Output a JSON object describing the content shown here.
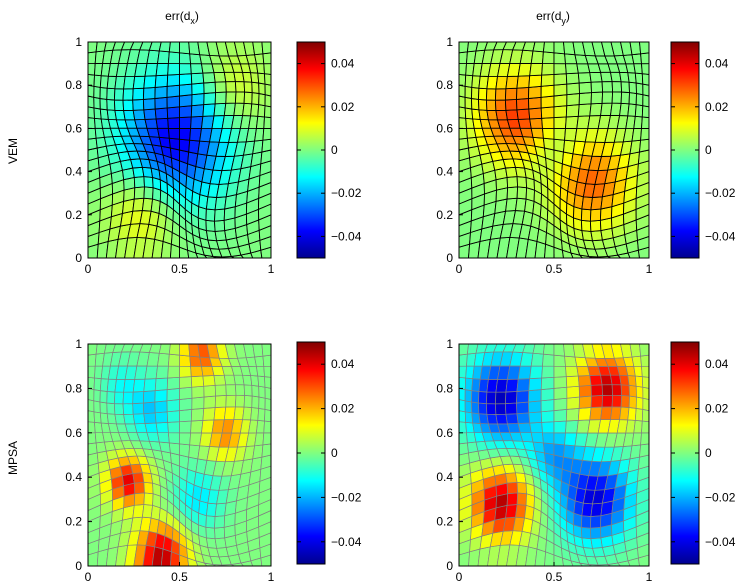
{
  "figure": {
    "column_titles": [
      "err(d",
      "err(d"
    ],
    "column_subscripts": [
      "x",
      "y"
    ],
    "row_labels": [
      "VEM",
      "MPSA"
    ]
  },
  "colors": {
    "colormap": [
      "#00008f",
      "#0000ff",
      "#0080ff",
      "#00ffff",
      "#80ff80",
      "#ffff00",
      "#ff8000",
      "#ff0000",
      "#800000"
    ],
    "vem_grid_line": "#000000",
    "mpsa_grid_line": "#808080"
  },
  "chart_data": [
    {
      "type": "heatmap",
      "method": "VEM",
      "quantity": "err(d_x)",
      "title": "err(d_x)",
      "xlim": [
        0,
        1
      ],
      "ylim": [
        0,
        1
      ],
      "xticks": [
        "0",
        "0.5",
        "1"
      ],
      "yticks": [
        "0",
        "0.2",
        "0.4",
        "0.6",
        "0.8",
        "1"
      ],
      "clim": [
        -0.05,
        0.05
      ],
      "colorbar_ticks": [
        "0.04",
        "0.02",
        "0",
        "−0.02",
        "−0.04"
      ],
      "colorbar_tick_values": [
        0.04,
        0.02,
        0,
        -0.02,
        -0.04
      ],
      "grid": "distorted 20x20 mesh, black lines",
      "field": {
        "kind": "smooth",
        "note": "negative blob centered near (0.55,0.55), mild positive lobes near (0.3,0.2) and (0.8,0.75)",
        "lobes": [
          {
            "x": 0.48,
            "y": 0.55,
            "v": -0.04,
            "w": 0.2
          },
          {
            "x": 0.3,
            "y": 0.22,
            "v": 0.015,
            "w": 0.14
          },
          {
            "x": 0.78,
            "y": 0.78,
            "v": 0.012,
            "w": 0.14
          }
        ]
      }
    },
    {
      "type": "heatmap",
      "method": "VEM",
      "quantity": "err(d_y)",
      "title": "err(d_y)",
      "xlim": [
        0,
        1
      ],
      "ylim": [
        0,
        1
      ],
      "xticks": [
        "0",
        "0.5",
        "1"
      ],
      "yticks": [
        "0",
        "0.2",
        "0.4",
        "0.6",
        "0.8",
        "1"
      ],
      "clim": [
        -0.05,
        0.05
      ],
      "colorbar_ticks": [
        "0.04",
        "0.02",
        "0",
        "−0.02",
        "−0.04"
      ],
      "colorbar_tick_values": [
        0.04,
        0.02,
        0,
        -0.02,
        -0.04
      ],
      "grid": "distorted 20x20 mesh, black lines",
      "field": {
        "kind": "smooth",
        "note": "positive lobes near (0.3,0.65) and (0.7,0.35)",
        "lobes": [
          {
            "x": 0.3,
            "y": 0.65,
            "v": 0.032,
            "w": 0.15
          },
          {
            "x": 0.7,
            "y": 0.35,
            "v": 0.028,
            "w": 0.15
          },
          {
            "x": 0.5,
            "y": 0.5,
            "v": -0.008,
            "w": 0.1
          }
        ]
      }
    },
    {
      "type": "heatmap",
      "method": "MPSA",
      "quantity": "err(d_x)",
      "xlim": [
        0,
        1
      ],
      "ylim": [
        0,
        1
      ],
      "xticks": [
        "0",
        "0.5",
        "1"
      ],
      "yticks": [
        "0",
        "0.2",
        "0.4",
        "0.6",
        "0.8",
        "1"
      ],
      "clim": [
        -0.05,
        0.05
      ],
      "colorbar_ticks": [
        "0.04",
        "0.02",
        "0",
        "−0.02",
        "−0.04"
      ],
      "colorbar_tick_values": [
        0.04,
        0.02,
        0,
        -0.02,
        -0.04
      ],
      "grid": "distorted 20x20 mesh, gray lines, piecewise-constant cells",
      "field": {
        "kind": "cells",
        "note": "hot cells at bottom center and left middle, cool bands elsewhere",
        "lobes": [
          {
            "x": 0.4,
            "y": 0.05,
            "v": 0.045,
            "w": 0.1
          },
          {
            "x": 0.22,
            "y": 0.38,
            "v": 0.04,
            "w": 0.08
          },
          {
            "x": 0.75,
            "y": 0.6,
            "v": 0.025,
            "w": 0.08
          },
          {
            "x": 0.62,
            "y": 0.95,
            "v": 0.03,
            "w": 0.08
          },
          {
            "x": 0.35,
            "y": 0.7,
            "v": -0.018,
            "w": 0.1
          },
          {
            "x": 0.6,
            "y": 0.3,
            "v": -0.015,
            "w": 0.1
          },
          {
            "x": 0.18,
            "y": 0.82,
            "v": -0.01,
            "w": 0.08
          }
        ]
      }
    },
    {
      "type": "heatmap",
      "method": "MPSA",
      "quantity": "err(d_y)",
      "xlim": [
        0,
        1
      ],
      "ylim": [
        0,
        1
      ],
      "xticks": [
        "0",
        "0.5",
        "1"
      ],
      "yticks": [
        "0",
        "0.2",
        "0.4",
        "0.6",
        "0.8",
        "1"
      ],
      "clim": [
        -0.05,
        0.05
      ],
      "colorbar_ticks": [
        "0.04",
        "0.02",
        "0",
        "−0.02",
        "−0.04"
      ],
      "colorbar_tick_values": [
        0.04,
        0.02,
        0,
        -0.02,
        -0.04
      ],
      "grid": "distorted 20x20 mesh, gray lines, piecewise-constant cells",
      "field": {
        "kind": "cells",
        "note": "cool bands upper-left and lower-right, hot spots lower-left and upper-right",
        "lobes": [
          {
            "x": 0.22,
            "y": 0.75,
            "v": -0.045,
            "w": 0.13
          },
          {
            "x": 0.72,
            "y": 0.3,
            "v": -0.042,
            "w": 0.13
          },
          {
            "x": 0.22,
            "y": 0.28,
            "v": 0.045,
            "w": 0.11
          },
          {
            "x": 0.78,
            "y": 0.8,
            "v": 0.045,
            "w": 0.11
          },
          {
            "x": 0.5,
            "y": 0.5,
            "v": -0.02,
            "w": 0.1
          }
        ]
      }
    }
  ]
}
